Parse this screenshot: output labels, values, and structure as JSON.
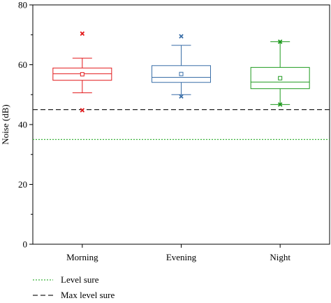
{
  "chart_data": {
    "type": "box",
    "ylabel": "Noise (dB)",
    "ylim": [
      0,
      80
    ],
    "yticks": [
      0,
      20,
      40,
      60,
      80
    ],
    "categories": [
      "Morning",
      "Evening",
      "Night"
    ],
    "boxes": [
      {
        "category": "Morning",
        "color": "#e31a1c",
        "whisker_low": 50.6,
        "q1": 54.8,
        "median": 57.0,
        "q3": 58.9,
        "whisker_high": 62.2,
        "mean": 56.8,
        "min": 44.8,
        "max": 70.4
      },
      {
        "category": "Evening",
        "color": "#3a6fa8",
        "whisker_low": 50.0,
        "q1": 54.1,
        "median": 55.8,
        "q3": 59.7,
        "whisker_high": 66.5,
        "mean": 56.9,
        "min": 49.4,
        "max": 69.5
      },
      {
        "category": "Night",
        "color": "#1e9a1e",
        "whisker_low": 46.7,
        "q1": 52.0,
        "median": 54.2,
        "q3": 59.1,
        "whisker_high": 67.7,
        "mean": 55.5,
        "min": 46.7,
        "max": 67.7
      }
    ],
    "reference_lines": [
      {
        "name": "Level sure",
        "value": 35,
        "color": "#3cb33c",
        "style": "dotted"
      },
      {
        "name": "Max level sure",
        "value": 45,
        "color": "#222222",
        "style": "dashed"
      }
    ],
    "legend_position": "bottom-left"
  }
}
